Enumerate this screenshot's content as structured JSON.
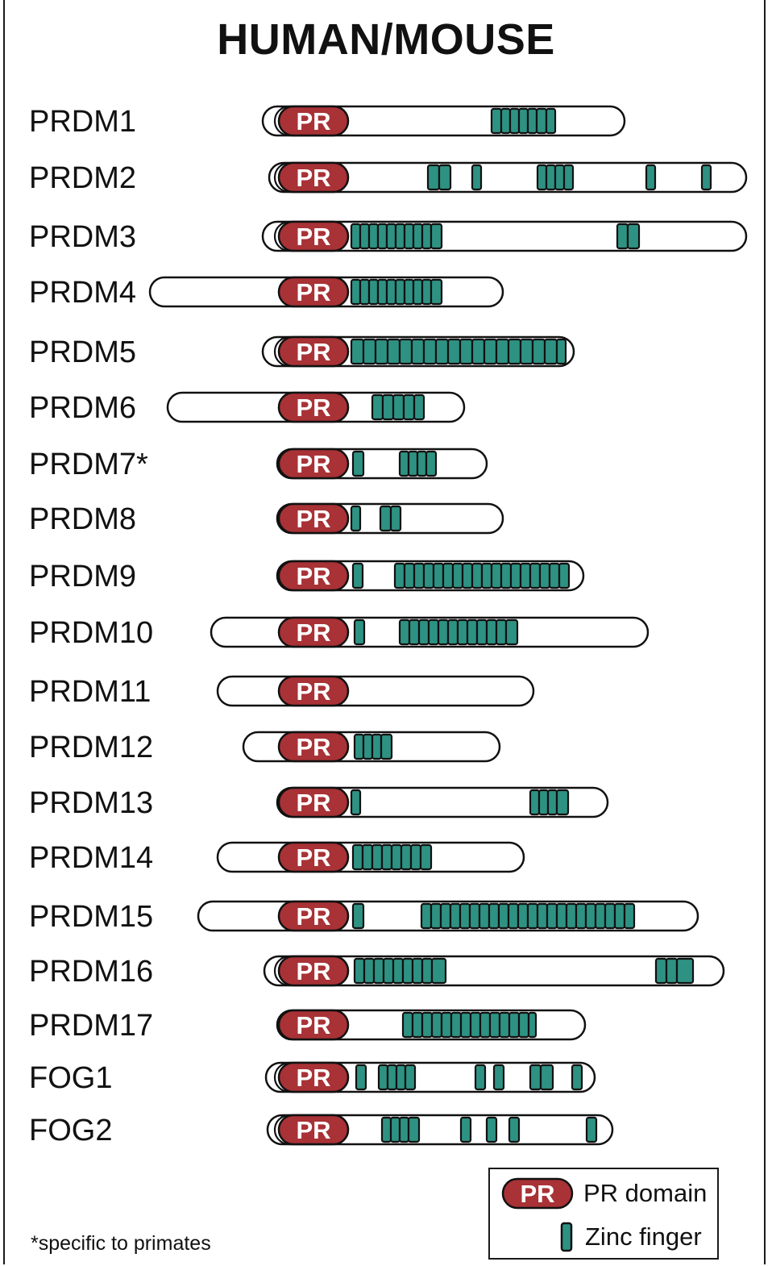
{
  "title": "HUMAN/MOUSE",
  "pr_label": "PR",
  "colors": {
    "pr_domain": "#a83236",
    "zinc_finger": "#2e9283",
    "outline": "#111111"
  },
  "proteins": [
    {
      "name": "PRDM1",
      "start": 326,
      "end": 775,
      "outer_ring": true,
      "zf": [
        [
          610,
          622
        ],
        [
          622,
          633
        ],
        [
          633,
          644
        ],
        [
          644,
          655
        ],
        [
          655,
          666
        ],
        [
          666,
          678
        ],
        [
          678,
          689
        ]
      ]
    },
    {
      "name": "PRDM2",
      "start": 334,
      "end": 926,
      "outer_ring": true,
      "zf": [
        [
          531,
          545
        ],
        [
          545,
          559
        ],
        [
          586,
          597
        ],
        [
          667,
          678
        ],
        [
          678,
          689
        ],
        [
          689,
          700
        ],
        [
          700,
          711
        ],
        [
          802,
          813
        ],
        [
          871,
          882
        ]
      ]
    },
    {
      "name": "PRDM3",
      "start": 326,
      "end": 926,
      "outer_ring": true,
      "zf": [
        [
          436,
          447
        ],
        [
          447,
          458
        ],
        [
          458,
          469
        ],
        [
          469,
          480
        ],
        [
          480,
          491
        ],
        [
          491,
          502
        ],
        [
          502,
          513
        ],
        [
          513,
          524
        ],
        [
          524,
          535
        ],
        [
          535,
          548
        ],
        [
          766,
          779
        ],
        [
          779,
          793
        ]
      ]
    },
    {
      "name": "PRDM4",
      "start": 186,
      "end": 624,
      "outer_ring": false,
      "zf": [
        [
          436,
          447
        ],
        [
          447,
          458
        ],
        [
          458,
          469
        ],
        [
          469,
          480
        ],
        [
          480,
          491
        ],
        [
          491,
          502
        ],
        [
          502,
          513
        ],
        [
          513,
          524
        ],
        [
          524,
          535
        ],
        [
          535,
          548
        ]
      ]
    },
    {
      "name": "PRDM5",
      "start": 326,
      "end": 712,
      "outer_ring": true,
      "zf": [
        [
          436,
          451
        ],
        [
          451,
          466
        ],
        [
          466,
          481
        ],
        [
          481,
          496
        ],
        [
          496,
          511
        ],
        [
          511,
          526
        ],
        [
          526,
          541
        ],
        [
          541,
          556
        ],
        [
          556,
          571
        ],
        [
          571,
          586
        ],
        [
          586,
          601
        ],
        [
          601,
          616
        ],
        [
          616,
          631
        ],
        [
          631,
          646
        ],
        [
          646,
          661
        ],
        [
          661,
          676
        ],
        [
          676,
          691
        ],
        [
          691,
          702
        ]
      ]
    },
    {
      "name": "PRDM6",
      "start": 208,
      "end": 576,
      "outer_ring": false,
      "zf": [
        [
          462,
          475
        ],
        [
          475,
          488
        ],
        [
          488,
          501
        ],
        [
          501,
          514
        ],
        [
          514,
          526
        ]
      ]
    },
    {
      "name": "PRDM7*",
      "start": 344,
      "end": 604,
      "outer_ring": false,
      "zf": [
        [
          438,
          451
        ],
        [
          496,
          507
        ],
        [
          507,
          518
        ],
        [
          518,
          529
        ],
        [
          529,
          541
        ]
      ]
    },
    {
      "name": "PRDM8",
      "start": 344,
      "end": 624,
      "outer_ring": false,
      "zf": [
        [
          436,
          447
        ],
        [
          472,
          485
        ],
        [
          485,
          497
        ]
      ]
    },
    {
      "name": "PRDM9",
      "start": 344,
      "end": 724,
      "outer_ring": false,
      "zf": [
        [
          438,
          450
        ],
        [
          490,
          502
        ],
        [
          502,
          514
        ],
        [
          514,
          526
        ],
        [
          526,
          538
        ],
        [
          538,
          550
        ],
        [
          550,
          562
        ],
        [
          562,
          574
        ],
        [
          574,
          586
        ],
        [
          586,
          598
        ],
        [
          598,
          610
        ],
        [
          610,
          622
        ],
        [
          622,
          634
        ],
        [
          634,
          646
        ],
        [
          646,
          658
        ],
        [
          658,
          670
        ],
        [
          670,
          682
        ],
        [
          682,
          694
        ],
        [
          694,
          706
        ]
      ]
    },
    {
      "name": "PRDM10",
      "start": 262,
      "end": 804,
      "outer_ring": false,
      "zf": [
        [
          440,
          452
        ],
        [
          496,
          508
        ],
        [
          508,
          520
        ],
        [
          520,
          532
        ],
        [
          532,
          544
        ],
        [
          544,
          556
        ],
        [
          556,
          568
        ],
        [
          568,
          580
        ],
        [
          580,
          592
        ],
        [
          592,
          604
        ],
        [
          604,
          616
        ],
        [
          616,
          628
        ],
        [
          628,
          642
        ]
      ]
    },
    {
      "name": "PRDM11",
      "start": 270,
      "end": 662,
      "outer_ring": false,
      "zf": []
    },
    {
      "name": "PRDM12",
      "start": 302,
      "end": 620,
      "outer_ring": false,
      "zf": [
        [
          440,
          451
        ],
        [
          451,
          462
        ],
        [
          462,
          473
        ],
        [
          473,
          486
        ]
      ]
    },
    {
      "name": "PRDM13",
      "start": 344,
      "end": 754,
      "outer_ring": false,
      "zf": [
        [
          436,
          447
        ],
        [
          658,
          669
        ],
        [
          669,
          680
        ],
        [
          680,
          691
        ],
        [
          691,
          705
        ]
      ]
    },
    {
      "name": "PRDM14",
      "start": 270,
      "end": 650,
      "outer_ring": false,
      "zf": [
        [
          438,
          450
        ],
        [
          450,
          462
        ],
        [
          462,
          474
        ],
        [
          474,
          486
        ],
        [
          486,
          498
        ],
        [
          498,
          510
        ],
        [
          510,
          522
        ],
        [
          522,
          535
        ]
      ]
    },
    {
      "name": "PRDM15",
      "start": 246,
      "end": 866,
      "outer_ring": false,
      "zf": [
        [
          438,
          451
        ],
        [
          523,
          535
        ],
        [
          535,
          547
        ],
        [
          547,
          559
        ],
        [
          559,
          571
        ],
        [
          571,
          583
        ],
        [
          583,
          595
        ],
        [
          595,
          607
        ],
        [
          607,
          619
        ],
        [
          619,
          631
        ],
        [
          631,
          643
        ],
        [
          643,
          655
        ],
        [
          655,
          667
        ],
        [
          667,
          679
        ],
        [
          679,
          691
        ],
        [
          691,
          703
        ],
        [
          703,
          715
        ],
        [
          715,
          727
        ],
        [
          727,
          739
        ],
        [
          739,
          751
        ],
        [
          751,
          763
        ],
        [
          763,
          775
        ],
        [
          775,
          787
        ]
      ]
    },
    {
      "name": "PRDM16",
      "start": 328,
      "end": 898,
      "outer_ring": true,
      "zf": [
        [
          440,
          452
        ],
        [
          452,
          464
        ],
        [
          464,
          476
        ],
        [
          476,
          488
        ],
        [
          488,
          500
        ],
        [
          500,
          512
        ],
        [
          512,
          524
        ],
        [
          524,
          536
        ],
        [
          536,
          553
        ],
        [
          814,
          827
        ],
        [
          827,
          840
        ],
        [
          840,
          860
        ]
      ]
    },
    {
      "name": "PRDM17",
      "start": 344,
      "end": 726,
      "outer_ring": false,
      "zf": [
        [
          500,
          512
        ],
        [
          512,
          524
        ],
        [
          524,
          536
        ],
        [
          536,
          548
        ],
        [
          548,
          560
        ],
        [
          560,
          572
        ],
        [
          572,
          584
        ],
        [
          584,
          596
        ],
        [
          596,
          608
        ],
        [
          608,
          620
        ],
        [
          620,
          632
        ],
        [
          632,
          644
        ],
        [
          644,
          656
        ],
        [
          656,
          665
        ]
      ]
    },
    {
      "name": "FOG1",
      "start": 330,
      "end": 738,
      "outer_ring": true,
      "zf": [
        [
          442,
          454
        ],
        [
          470,
          481
        ],
        [
          481,
          492
        ],
        [
          492,
          503
        ],
        [
          503,
          515
        ],
        [
          590,
          602
        ],
        [
          613,
          625
        ],
        [
          658,
          671
        ],
        [
          671,
          686
        ],
        [
          710,
          722
        ]
      ]
    },
    {
      "name": "FOG2",
      "start": 332,
      "end": 760,
      "outer_ring": true,
      "zf": [
        [
          474,
          485
        ],
        [
          485,
          496
        ],
        [
          496,
          507
        ],
        [
          507,
          520
        ],
        [
          572,
          584
        ],
        [
          604,
          616
        ],
        [
          632,
          644
        ],
        [
          728,
          740
        ]
      ]
    }
  ],
  "footnote": "*specific to primates",
  "legend": {
    "pr_domain": "PR domain",
    "zinc_finger": "Zinc finger"
  }
}
